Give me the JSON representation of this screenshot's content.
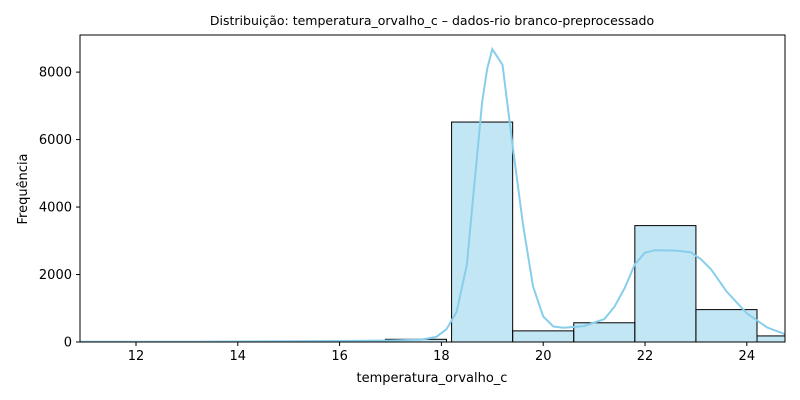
{
  "chart_data": {
    "type": "bar",
    "title": "Distribuição: temperatura_orvalho_c – dados-rio branco-preprocessado",
    "xlabel": "temperatura_orvalho_c",
    "ylabel": "Frequência",
    "xlim": [
      10.9,
      24.75
    ],
    "ylim": [
      0,
      9100
    ],
    "xticks": [
      12,
      14,
      16,
      18,
      20,
      22,
      24
    ],
    "yticks": [
      0,
      2000,
      4000,
      6000,
      8000
    ],
    "grid": false,
    "bins": [
      {
        "x0": 10.9,
        "x1": 12.1,
        "count": 5
      },
      {
        "x0": 12.1,
        "x1": 13.3,
        "count": 5
      },
      {
        "x0": 13.3,
        "x1": 14.5,
        "count": 15
      },
      {
        "x0": 14.5,
        "x1": 15.7,
        "count": 20
      },
      {
        "x0": 15.7,
        "x1": 16.9,
        "count": 30
      },
      {
        "x0": 16.9,
        "x1": 18.1,
        "count": 80
      },
      {
        "x0": 18.2,
        "x1": 19.4,
        "count": 6520
      },
      {
        "x0": 19.4,
        "x1": 20.6,
        "count": 330
      },
      {
        "x0": 20.6,
        "x1": 21.8,
        "count": 570
      },
      {
        "x0": 21.8,
        "x1": 23.0,
        "count": 3450
      },
      {
        "x0": 23.0,
        "x1": 24.2,
        "count": 960
      },
      {
        "x0": 24.2,
        "x1": 24.75,
        "count": 180
      }
    ],
    "kde": {
      "name": "",
      "x": [
        10.9,
        12.0,
        13.0,
        14.0,
        15.0,
        16.0,
        17.0,
        17.6,
        17.9,
        18.1,
        18.3,
        18.5,
        18.6,
        18.8,
        18.9,
        19.0,
        19.2,
        19.4,
        19.6,
        19.8,
        20.0,
        20.2,
        20.4,
        20.8,
        21.2,
        21.4,
        21.6,
        21.8,
        22.0,
        22.2,
        22.6,
        22.9,
        23.1,
        23.3,
        23.6,
        24.0,
        24.4,
        24.75
      ],
      "y": [
        5,
        8,
        10,
        15,
        20,
        30,
        45,
        70,
        150,
        380,
        900,
        2300,
        3900,
        7100,
        8100,
        8680,
        8220,
        5800,
        3500,
        1650,
        760,
        460,
        420,
        470,
        680,
        1050,
        1600,
        2300,
        2650,
        2720,
        2710,
        2660,
        2450,
        2150,
        1500,
        850,
        430,
        230
      ],
      "color": "#87ceeb"
    },
    "bar_fill": "#87ceeb",
    "bar_fill_alpha": 0.5,
    "bar_edge": "#000000"
  }
}
